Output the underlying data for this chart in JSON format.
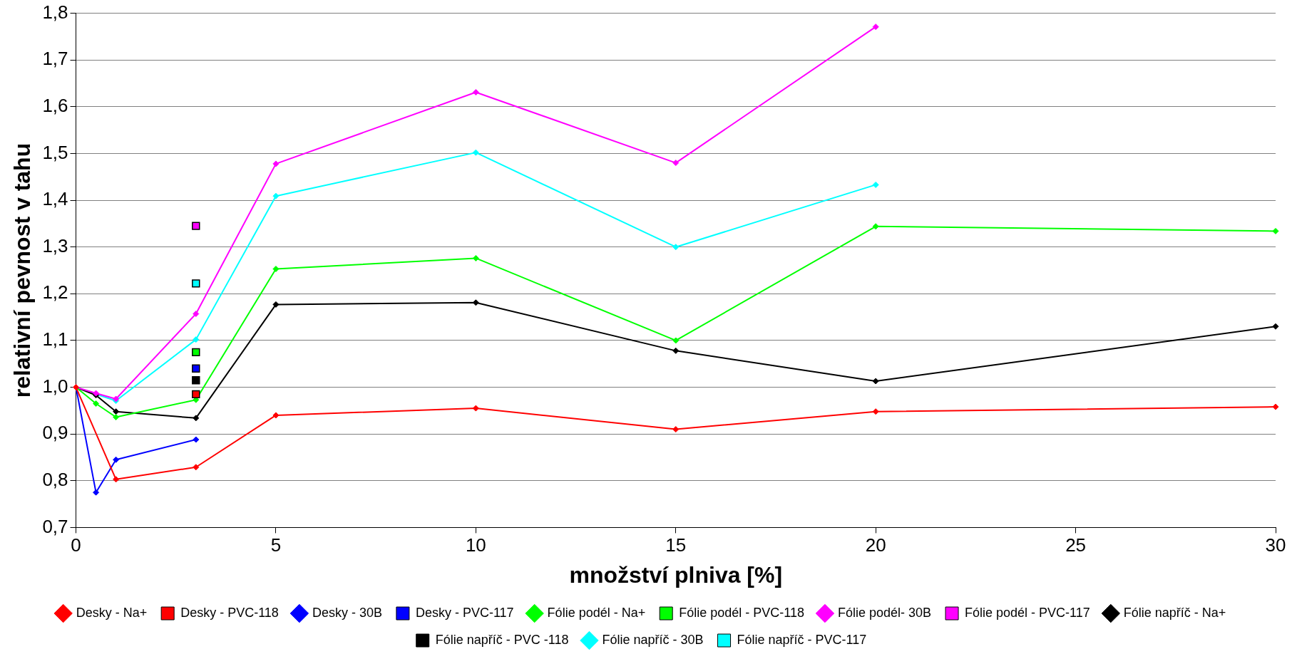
{
  "chart_data": {
    "type": "line",
    "xlabel": "množství plniva [%]",
    "ylabel": "relativní pevnost v tahu",
    "xlim": [
      0,
      30
    ],
    "xticks": [
      0,
      5,
      10,
      15,
      20,
      25,
      30
    ],
    "ylim": [
      0.7,
      1.8
    ],
    "yticks": [
      {
        "value": 0.7,
        "label": "0,7"
      },
      {
        "value": 0.8,
        "label": "0,8"
      },
      {
        "value": 0.9,
        "label": "0,9"
      },
      {
        "value": 1.0,
        "label": "1,0"
      },
      {
        "value": 1.1,
        "label": "1,1"
      },
      {
        "value": 1.2,
        "label": "1,2"
      },
      {
        "value": 1.3,
        "label": "1,3"
      },
      {
        "value": 1.4,
        "label": "1,4"
      },
      {
        "value": 1.5,
        "label": "1,5"
      },
      {
        "value": 1.6,
        "label": "1,6"
      },
      {
        "value": 1.7,
        "label": "1,7"
      },
      {
        "value": 1.8,
        "label": "1,8"
      }
    ],
    "grid": "y",
    "legend": "bottom",
    "line_style": "solid",
    "series": [
      {
        "name": "Desky - Na+",
        "marker": "diamond",
        "color": "#ff0000",
        "x": [
          0,
          1,
          3,
          5,
          10,
          15,
          20,
          30
        ],
        "values": [
          1.0,
          0.803,
          0.829,
          0.94,
          0.955,
          0.91,
          0.948,
          0.958
        ]
      },
      {
        "name": "Desky - PVC-118",
        "type": "scatter",
        "marker": "square",
        "color": "#ff0000",
        "x": [
          3
        ],
        "values": [
          0.985
        ]
      },
      {
        "name": "Desky - 30B",
        "marker": "diamond",
        "color": "#0000ff",
        "x": [
          0,
          0.5,
          1,
          3
        ],
        "values": [
          1.0,
          0.775,
          0.845,
          0.888
        ]
      },
      {
        "name": "Desky - PVC-117",
        "type": "scatter",
        "marker": "square",
        "color": "#0000ff",
        "x": [
          3
        ],
        "values": [
          1.04
        ]
      },
      {
        "name": "Fólie podél - Na+",
        "marker": "diamond",
        "color": "#00ff00",
        "x": [
          0,
          0.5,
          1,
          3,
          5,
          10,
          15,
          20,
          30
        ],
        "values": [
          1.0,
          0.965,
          0.936,
          0.973,
          1.253,
          1.276,
          1.1,
          1.344,
          1.334
        ]
      },
      {
        "name": "Fólie podél - PVC-118",
        "type": "scatter",
        "marker": "square",
        "color": "#00ff00",
        "x": [
          3
        ],
        "values": [
          1.075
        ]
      },
      {
        "name": "Fólie podél- 30B",
        "marker": "diamond",
        "color": "#ff00ff",
        "x": [
          0,
          0.5,
          1,
          3,
          5,
          10,
          15,
          20
        ],
        "values": [
          1.0,
          0.987,
          0.975,
          1.157,
          1.478,
          1.631,
          1.48,
          1.771
        ]
      },
      {
        "name": "Fólie podél - PVC-117",
        "type": "scatter",
        "marker": "square",
        "color": "#ff00ff",
        "x": [
          3
        ],
        "values": [
          1.345
        ]
      },
      {
        "name": "Fólie napříč - Na+",
        "marker": "diamond",
        "color": "#000000",
        "x": [
          0,
          0.5,
          1,
          3,
          5,
          10,
          15,
          20,
          30
        ],
        "values": [
          1.0,
          0.983,
          0.948,
          0.934,
          1.177,
          1.181,
          1.078,
          1.013,
          1.13
        ]
      },
      {
        "name": "Fólie napříč - PVC -118",
        "type": "scatter",
        "marker": "square",
        "color": "#000000",
        "x": [
          3
        ],
        "values": [
          1.015
        ]
      },
      {
        "name": "Fólie napříč - 30B",
        "marker": "diamond",
        "color": "#00ffff",
        "x": [
          0,
          0.5,
          1,
          3,
          5,
          10,
          15,
          20
        ],
        "values": [
          1.0,
          0.985,
          0.971,
          1.102,
          1.409,
          1.502,
          1.3,
          1.433
        ]
      },
      {
        "name": "Fólie napříč - PVC-117",
        "type": "scatter",
        "marker": "square",
        "color": "#00ffff",
        "x": [
          3
        ],
        "values": [
          1.222
        ]
      }
    ]
  }
}
